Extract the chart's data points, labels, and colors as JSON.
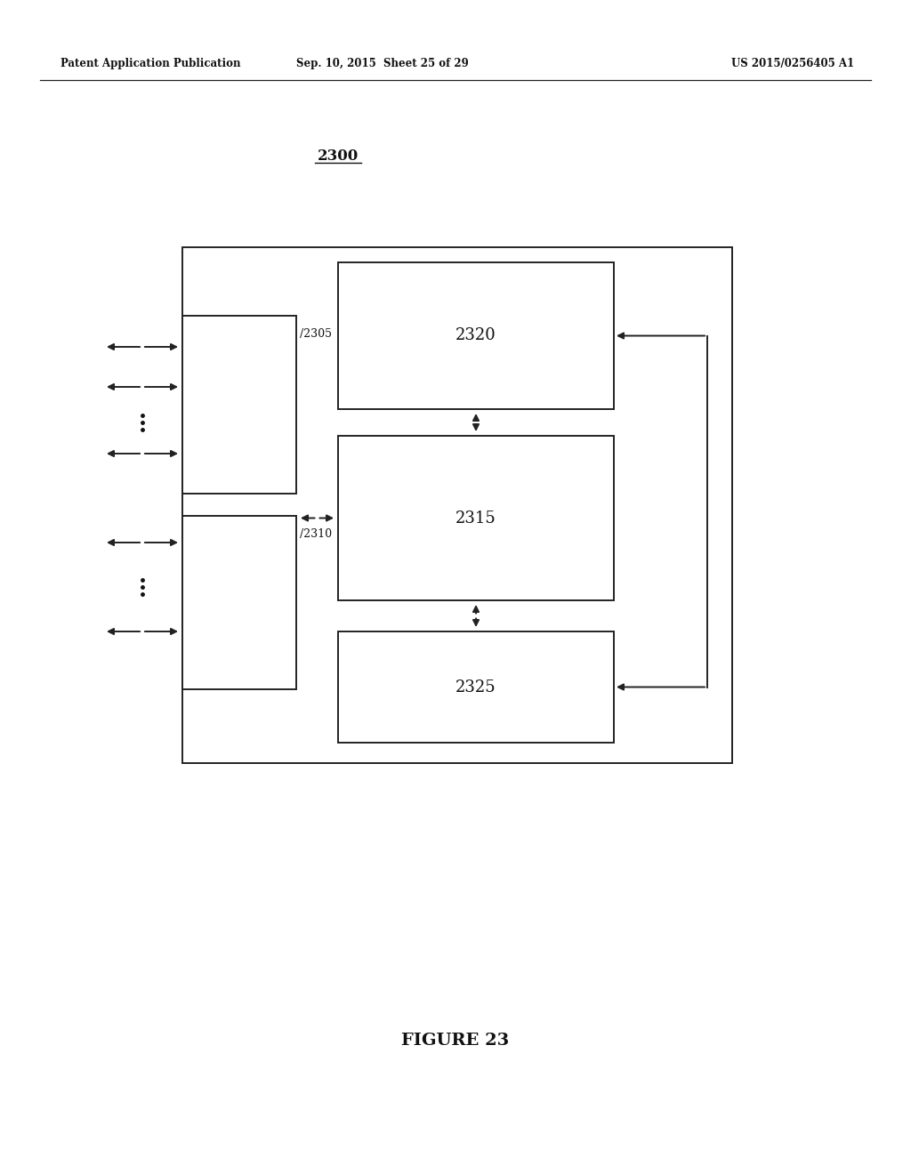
{
  "bg_color": "#ffffff",
  "header_left": "Patent Application Publication",
  "header_mid": "Sep. 10, 2015  Sheet 25 of 29",
  "header_right": "US 2015/0256405 A1",
  "diagram_label": "2300",
  "figure_caption": "FIGURE 23",
  "label_2305": "2305",
  "label_2310": "2310",
  "label_2315": "2315",
  "label_2320": "2320",
  "label_2325": "2325",
  "text_color": "#111111",
  "line_color": "#222222",
  "lw": 1.4
}
